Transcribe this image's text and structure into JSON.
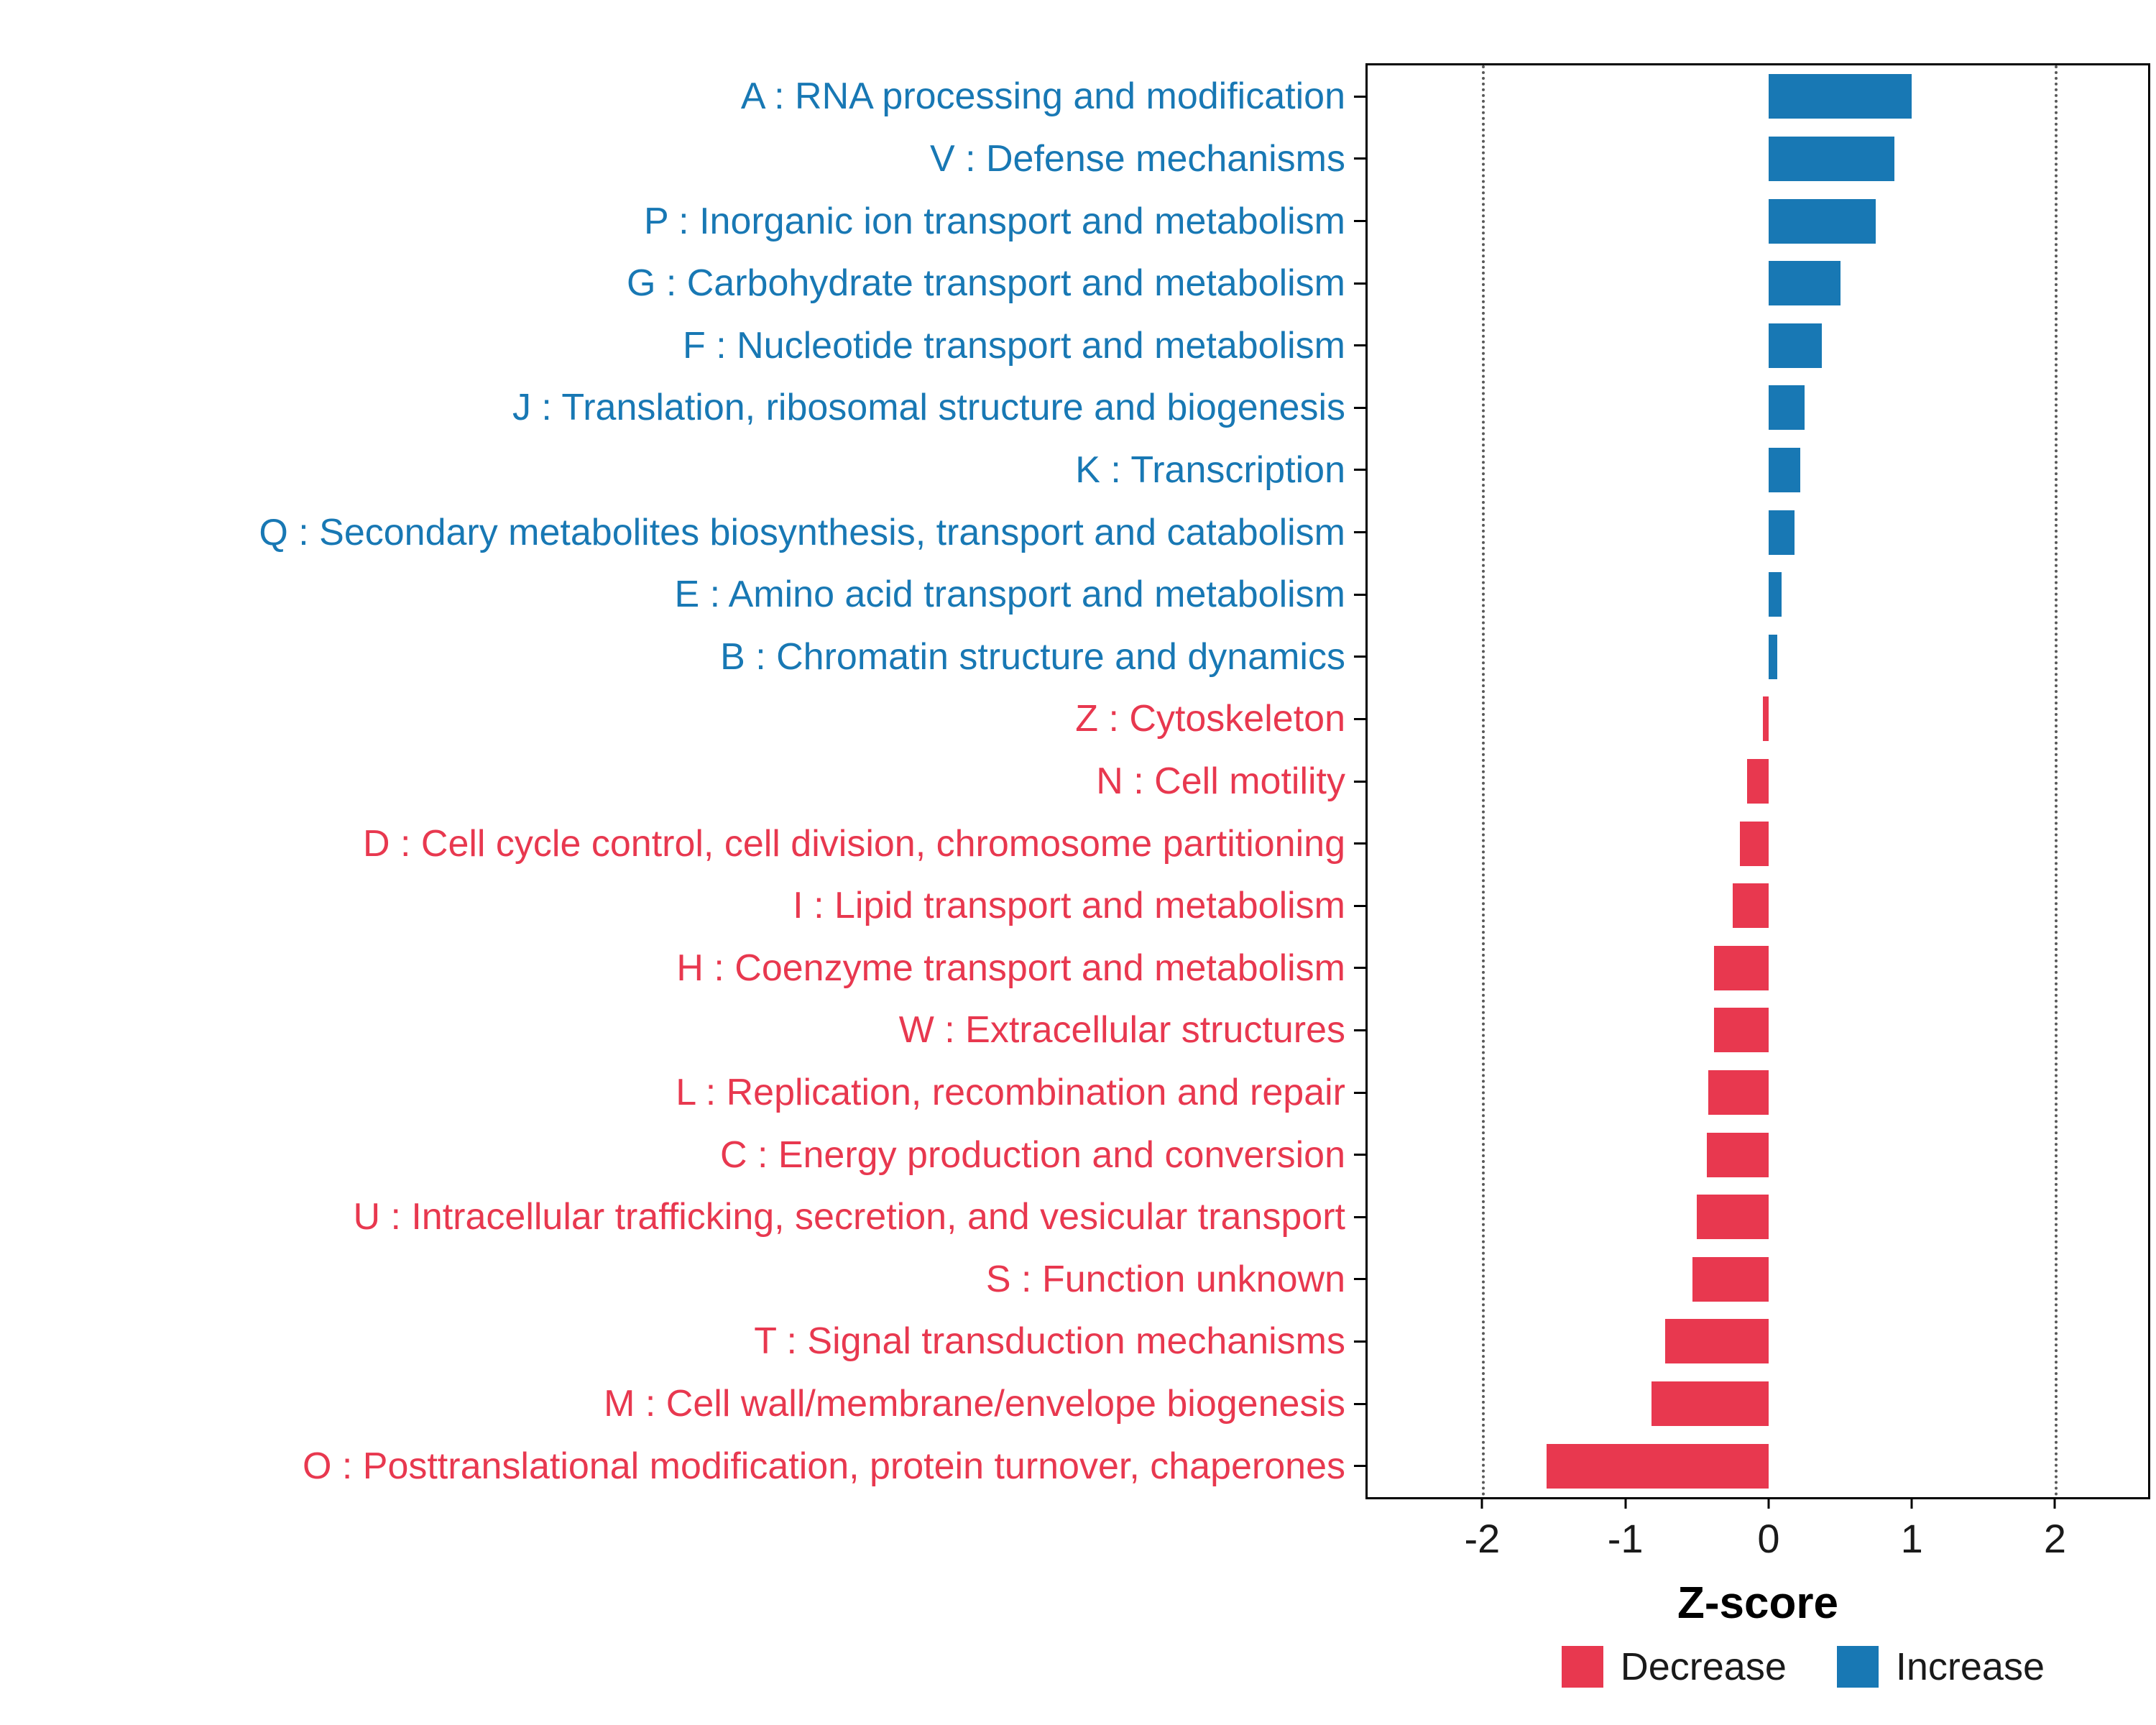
{
  "chart_data": {
    "type": "bar",
    "orientation": "horizontal",
    "title": "",
    "xlabel": "Z-score",
    "ylabel": "",
    "xlim": [
      -2.8,
      2.65
    ],
    "x_ticks": [
      -2,
      -1,
      0,
      1,
      2
    ],
    "reference_lines": [
      -2,
      2
    ],
    "grid": "off",
    "legend_position": "bottom-right",
    "colors": {
      "increase": "#1878B4",
      "decrease": "#E8384F"
    },
    "legend": [
      {
        "label": "Decrease",
        "color": "#E8384F"
      },
      {
        "label": "Increase",
        "color": "#1878B4"
      }
    ],
    "categories": [
      {
        "label": "A : RNA processing and modification",
        "value": 1.0,
        "direction": "Increase"
      },
      {
        "label": "V : Defense mechanisms",
        "value": 0.88,
        "direction": "Increase"
      },
      {
        "label": "P : Inorganic ion transport and metabolism",
        "value": 0.75,
        "direction": "Increase"
      },
      {
        "label": "G : Carbohydrate transport and metabolism",
        "value": 0.5,
        "direction": "Increase"
      },
      {
        "label": "F : Nucleotide transport and metabolism",
        "value": 0.37,
        "direction": "Increase"
      },
      {
        "label": "J : Translation, ribosomal structure and biogenesis",
        "value": 0.25,
        "direction": "Increase"
      },
      {
        "label": "K : Transcription",
        "value": 0.22,
        "direction": "Increase"
      },
      {
        "label": "Q : Secondary metabolites biosynthesis, transport and catabolism",
        "value": 0.18,
        "direction": "Increase"
      },
      {
        "label": "E : Amino acid transport and metabolism",
        "value": 0.09,
        "direction": "Increase"
      },
      {
        "label": "B : Chromatin structure and dynamics",
        "value": 0.06,
        "direction": "Increase"
      },
      {
        "label": "Z : Cytoskeleton",
        "value": -0.04,
        "direction": "Decrease"
      },
      {
        "label": "N : Cell motility",
        "value": -0.15,
        "direction": "Decrease"
      },
      {
        "label": "D : Cell cycle control, cell division, chromosome partitioning",
        "value": -0.2,
        "direction": "Decrease"
      },
      {
        "label": "I : Lipid transport and metabolism",
        "value": -0.25,
        "direction": "Decrease"
      },
      {
        "label": "H : Coenzyme transport and metabolism",
        "value": -0.38,
        "direction": "Decrease"
      },
      {
        "label": "W : Extracellular structures",
        "value": -0.38,
        "direction": "Decrease"
      },
      {
        "label": "L : Replication, recombination and repair",
        "value": -0.42,
        "direction": "Decrease"
      },
      {
        "label": "C : Energy production and conversion",
        "value": -0.43,
        "direction": "Decrease"
      },
      {
        "label": "U : Intracellular trafficking, secretion, and vesicular transport",
        "value": -0.5,
        "direction": "Decrease"
      },
      {
        "label": "S : Function unknown",
        "value": -0.53,
        "direction": "Decrease"
      },
      {
        "label": "T : Signal transduction mechanisms",
        "value": -0.72,
        "direction": "Decrease"
      },
      {
        "label": "M : Cell wall/membrane/envelope biogenesis",
        "value": -0.82,
        "direction": "Decrease"
      },
      {
        "label": "O : Posttranslational modification, protein turnover, chaperones",
        "value": -1.55,
        "direction": "Decrease"
      }
    ]
  }
}
